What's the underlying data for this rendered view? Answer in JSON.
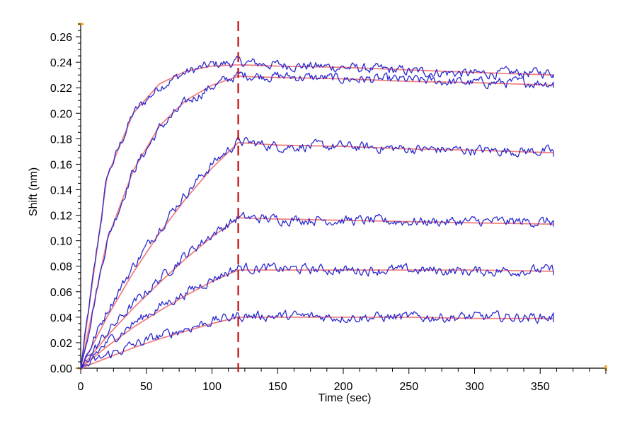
{
  "chart_data": {
    "type": "line",
    "title": "",
    "xlabel": "Time (sec)",
    "ylabel": "Shift (nm)",
    "xlim": [
      0,
      400
    ],
    "ylim": [
      0,
      0.27
    ],
    "x_ticks": [
      0,
      50,
      100,
      150,
      200,
      250,
      300,
      350
    ],
    "y_ticks": [
      0.0,
      0.02,
      0.04,
      0.06,
      0.08,
      0.1,
      0.12,
      0.14,
      0.16,
      0.18,
      0.2,
      0.22,
      0.24,
      0.26
    ],
    "x_tick_labels": [
      "0",
      "50",
      "100",
      "150",
      "200",
      "250",
      "300",
      "350"
    ],
    "y_tick_labels": [
      "0.00",
      "0.02",
      "0.04",
      "0.06",
      "0.08",
      "0.10",
      "0.12",
      "0.14",
      "0.16",
      "0.18",
      "0.20",
      "0.22",
      "0.24",
      "0.26"
    ],
    "dissociation_start": 120,
    "x_end": 360,
    "grid": false,
    "legend": false,
    "colors": {
      "raw": "#2a2ad0",
      "fit": "#f08080",
      "marker": "#c81e1e",
      "axis_accent": "#f0a020"
    },
    "series": [
      {
        "kind": "fit",
        "x": [
          0,
          20,
          40,
          60,
          80,
          100,
          120,
          150,
          200,
          250,
          300,
          360
        ],
        "values": [
          0,
          0.15,
          0.2,
          0.223,
          0.233,
          0.237,
          0.238,
          0.237,
          0.236,
          0.234,
          0.232,
          0.23
        ]
      },
      {
        "kind": "raw",
        "x": [
          0,
          20,
          40,
          60,
          80,
          100,
          120,
          150,
          200,
          250,
          300,
          360
        ],
        "values": [
          0,
          0.15,
          0.2,
          0.221,
          0.232,
          0.238,
          0.24,
          0.238,
          0.236,
          0.233,
          0.231,
          0.232
        ]
      },
      {
        "kind": "fit",
        "x": [
          0,
          20,
          40,
          60,
          80,
          100,
          120,
          150,
          200,
          250,
          300,
          360
        ],
        "values": [
          0,
          0.1,
          0.155,
          0.19,
          0.21,
          0.222,
          0.229,
          0.228,
          0.227,
          0.225,
          0.224,
          0.222
        ]
      },
      {
        "kind": "raw",
        "x": [
          0,
          20,
          40,
          60,
          80,
          100,
          120,
          150,
          200,
          250,
          300,
          360
        ],
        "values": [
          0,
          0.1,
          0.155,
          0.188,
          0.208,
          0.221,
          0.23,
          0.229,
          0.227,
          0.226,
          0.224,
          0.224
        ]
      },
      {
        "kind": "fit",
        "x": [
          0,
          20,
          40,
          60,
          80,
          100,
          120,
          150,
          200,
          250,
          300,
          360
        ],
        "values": [
          0,
          0.04,
          0.075,
          0.106,
          0.133,
          0.157,
          0.177,
          0.175,
          0.174,
          0.172,
          0.171,
          0.169
        ]
      },
      {
        "kind": "raw",
        "x": [
          0,
          20,
          40,
          60,
          80,
          100,
          120,
          150,
          200,
          250,
          300,
          360
        ],
        "values": [
          0,
          0.045,
          0.08,
          0.11,
          0.137,
          0.16,
          0.178,
          0.174,
          0.174,
          0.172,
          0.171,
          0.17
        ]
      },
      {
        "kind": "fit",
        "x": [
          0,
          20,
          40,
          60,
          80,
          100,
          120,
          150,
          200,
          250,
          300,
          360
        ],
        "values": [
          0,
          0.025,
          0.047,
          0.067,
          0.086,
          0.103,
          0.118,
          0.117,
          0.116,
          0.115,
          0.114,
          0.113
        ]
      },
      {
        "kind": "raw",
        "x": [
          0,
          20,
          40,
          60,
          80,
          100,
          120,
          150,
          200,
          250,
          300,
          360
        ],
        "values": [
          0,
          0.028,
          0.05,
          0.07,
          0.089,
          0.105,
          0.118,
          0.117,
          0.116,
          0.115,
          0.115,
          0.115
        ]
      },
      {
        "kind": "fit",
        "x": [
          0,
          20,
          40,
          60,
          80,
          100,
          120,
          150,
          200,
          250,
          300,
          360
        ],
        "values": [
          0,
          0.017,
          0.032,
          0.045,
          0.057,
          0.068,
          0.077,
          0.077,
          0.077,
          0.077,
          0.077,
          0.076
        ]
      },
      {
        "kind": "raw",
        "x": [
          0,
          20,
          40,
          60,
          80,
          100,
          120,
          150,
          200,
          250,
          300,
          360
        ],
        "values": [
          0,
          0.02,
          0.035,
          0.048,
          0.059,
          0.07,
          0.079,
          0.078,
          0.077,
          0.077,
          0.076,
          0.077
        ]
      },
      {
        "kind": "fit",
        "x": [
          0,
          20,
          40,
          60,
          80,
          100,
          120,
          150,
          200,
          250,
          300,
          360
        ],
        "values": [
          0,
          0.008,
          0.016,
          0.023,
          0.029,
          0.035,
          0.04,
          0.04,
          0.04,
          0.04,
          0.039,
          0.039
        ]
      },
      {
        "kind": "raw",
        "x": [
          0,
          20,
          40,
          60,
          80,
          100,
          120,
          150,
          200,
          250,
          300,
          360
        ],
        "values": [
          0,
          0.01,
          0.018,
          0.025,
          0.031,
          0.037,
          0.041,
          0.041,
          0.04,
          0.04,
          0.04,
          0.04
        ]
      }
    ]
  }
}
